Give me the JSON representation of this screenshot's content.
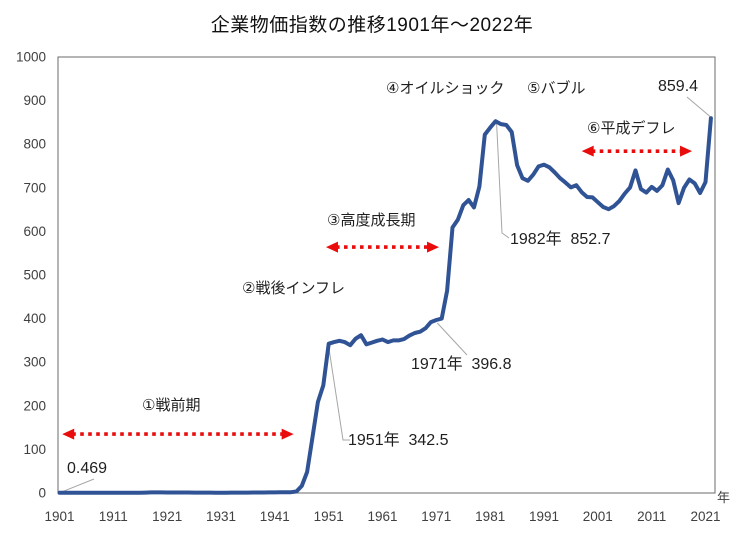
{
  "chart_data": {
    "type": "line",
    "title": "企業物価指数の推移1901年～2022年",
    "x_unit_label": "年",
    "x_range": [
      1901,
      2022
    ],
    "x_ticks": [
      1901,
      1911,
      1921,
      1931,
      1941,
      1951,
      1961,
      1971,
      1981,
      1991,
      2001,
      2011,
      2021
    ],
    "y_ticks": [
      0,
      100,
      200,
      300,
      400,
      500,
      600,
      700,
      800,
      900,
      1000
    ],
    "ylim": [
      0,
      1000
    ],
    "grid": false,
    "legend": "none",
    "line_color": "#2f5394",
    "annotation_arrow_color": "#e90c0c",
    "axis_text_color": "#404040",
    "values": [
      0.469,
      0.47,
      0.49,
      0.52,
      0.55,
      0.57,
      0.62,
      0.58,
      0.54,
      0.55,
      0.57,
      0.6,
      0.6,
      0.57,
      0.63,
      0.78,
      1.0,
      1.3,
      1.43,
      1.42,
      1.13,
      1.1,
      1.14,
      1.18,
      1.16,
      1.03,
      0.98,
      0.97,
      0.95,
      0.77,
      0.65,
      0.72,
      0.81,
      0.86,
      0.87,
      0.9,
      1.04,
      1.11,
      1.22,
      1.33,
      1.41,
      1.5,
      1.63,
      1.87,
      3.5,
      16.3,
      48.2,
      127.9,
      208.8,
      246.8,
      342.5,
      346,
      349,
      346,
      339,
      354,
      362,
      341,
      345,
      349,
      352,
      346,
      350,
      350,
      353,
      361,
      367,
      370,
      378,
      392,
      396.8,
      400,
      464,
      609,
      627,
      660,
      672,
      655,
      703,
      822,
      838,
      852.7,
      846,
      844,
      828,
      752,
      722,
      716,
      730,
      749,
      753,
      747,
      735,
      722,
      712,
      701,
      706,
      690,
      679,
      678,
      667,
      656,
      651,
      658,
      670,
      687,
      701,
      740,
      697,
      689,
      702,
      693,
      706,
      742,
      717,
      665,
      700,
      719,
      710,
      688,
      713,
      859.4
    ],
    "annotations": {
      "periods": [
        {
          "label": "①戦前期",
          "year_start": 1901.5,
          "year_end": 1944.5,
          "arrow_y_value": 135
        },
        {
          "label": "③高度成長期",
          "year_start": 1950.5,
          "year_end": 1971.5,
          "arrow_y_value": 564
        },
        {
          "label": "⑥平成デフレ",
          "year_start": 1998.0,
          "year_end": 2018.5,
          "arrow_y_value": 784
        }
      ],
      "events": [
        {
          "label": "②戦後インフレ"
        },
        {
          "label": "④オイルショック"
        },
        {
          "label": "⑤バブル"
        }
      ],
      "point_labels": [
        {
          "year": 1901,
          "value": 0.469,
          "text": "0.469"
        },
        {
          "year": 1951,
          "value": 342.5,
          "text": "1951年  342.5"
        },
        {
          "year": 1971,
          "value": 396.8,
          "text": "1971年  396.8"
        },
        {
          "year": 1982,
          "value": 852.7,
          "text": "1982年  852.7"
        },
        {
          "year": 2022,
          "value": 859.4,
          "text": "859.4"
        }
      ]
    }
  }
}
